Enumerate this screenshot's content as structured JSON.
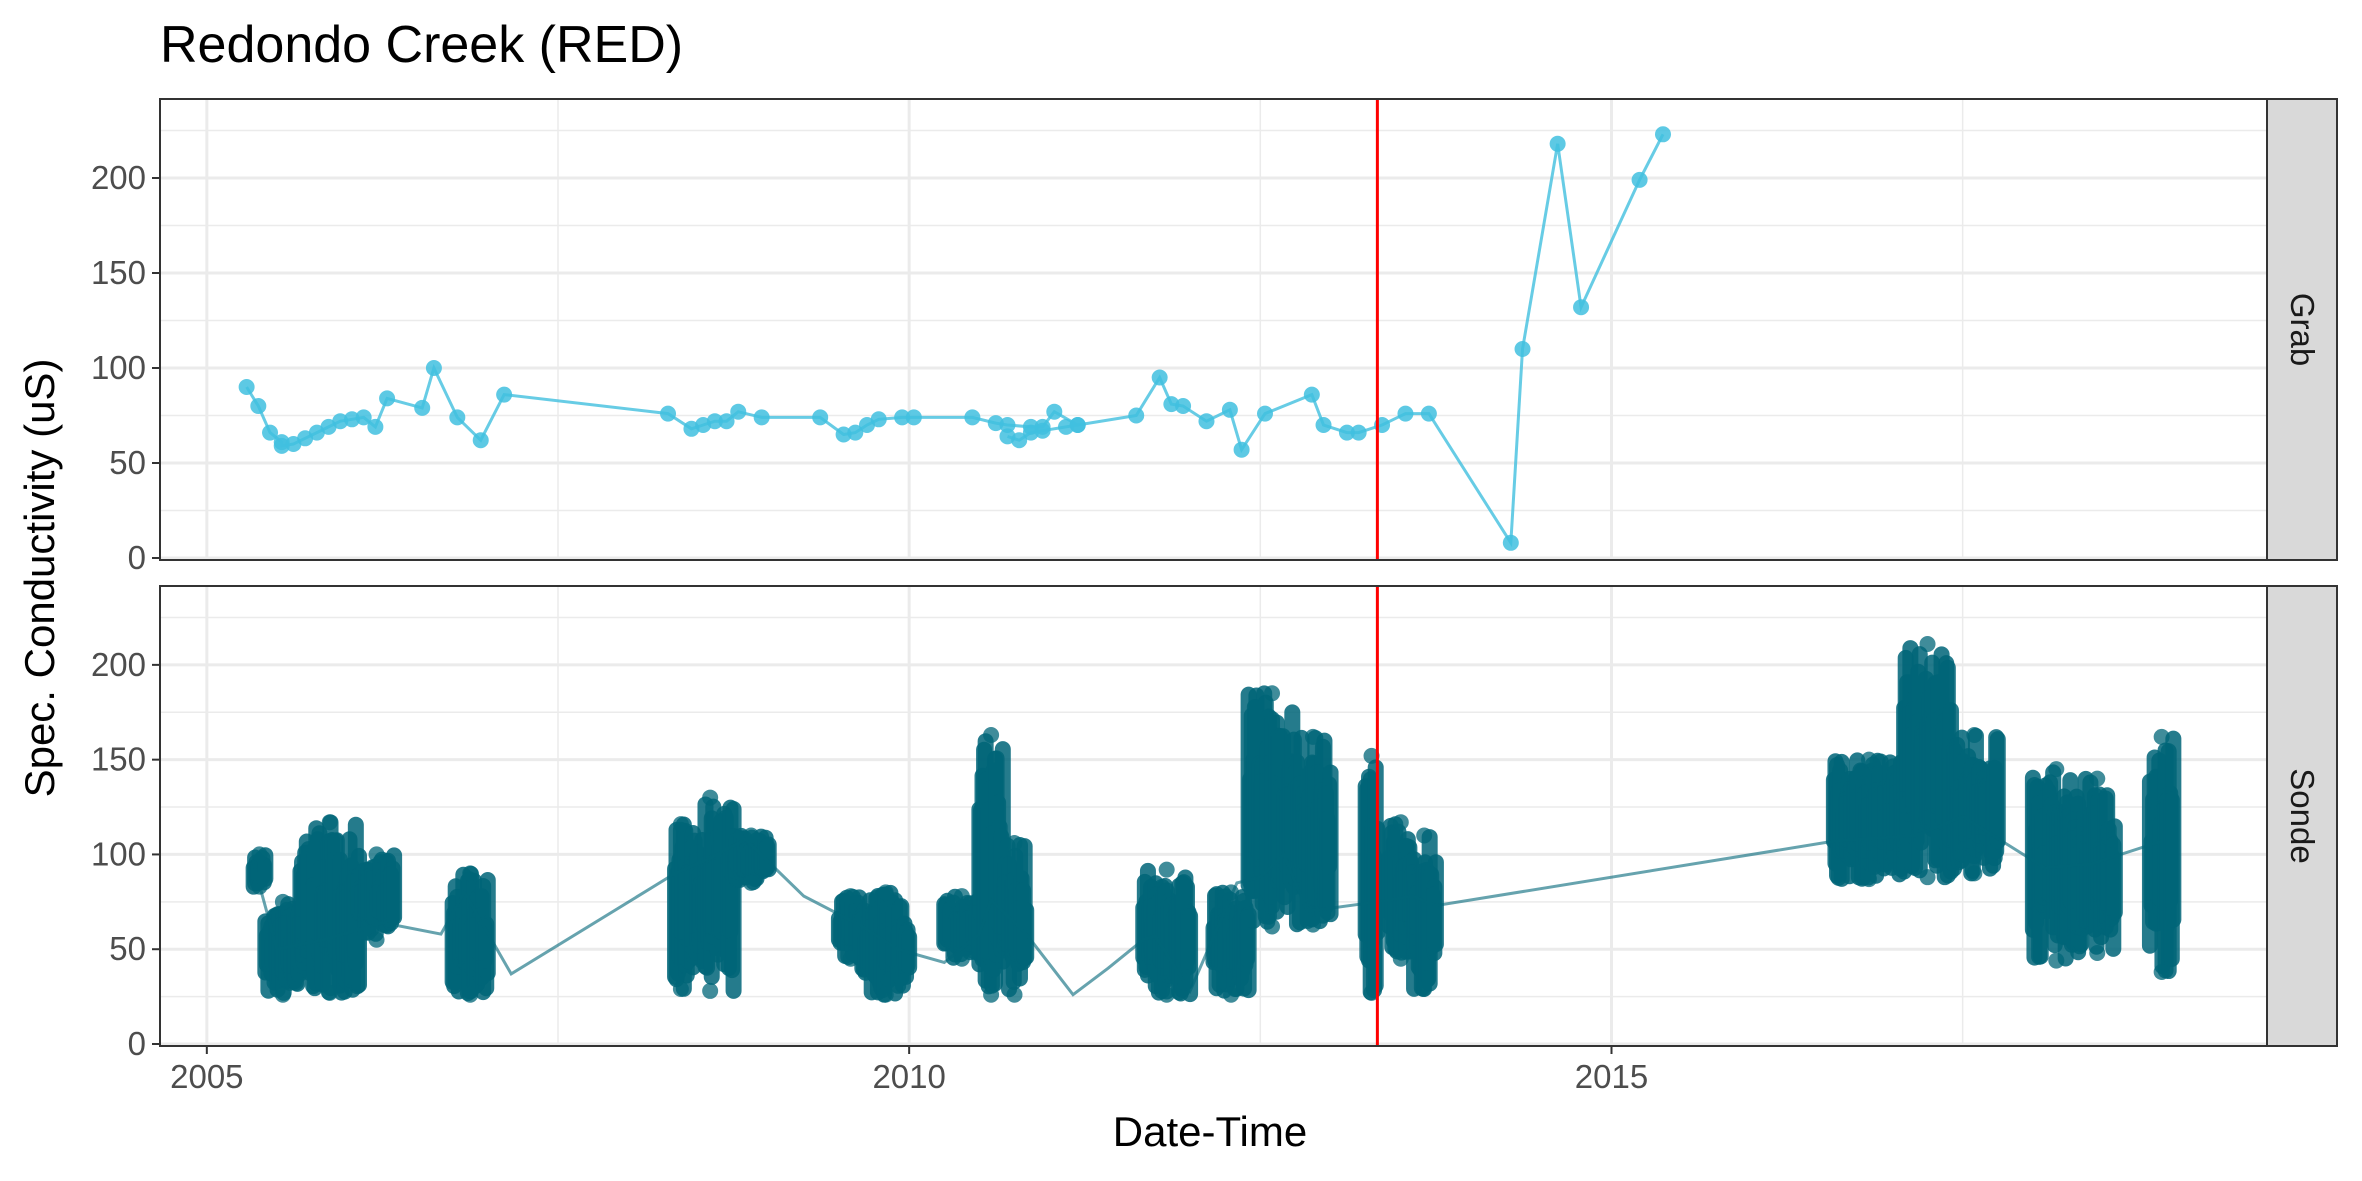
{
  "chart_data": {
    "type": "line",
    "title": "Redondo Creek (RED)",
    "xlabel": "Date-Time",
    "ylabel": "Spec. Conductivity (uS)",
    "x_ticks": [
      "2005",
      "2010",
      "2015"
    ],
    "y_ticks": [
      "0",
      "50",
      "100",
      "150",
      "200"
    ],
    "ylim": [
      0,
      230
    ],
    "xlim": [
      "2004-09",
      "2019-09"
    ],
    "grid": true,
    "reference_line": {
      "x": "2013-05",
      "color": "#ff0000"
    },
    "colors": {
      "grab": "#41bfdf",
      "sonde": "#006578",
      "grid": "#ebebeb",
      "strip_bg": "#d9d9d9"
    },
    "panels": [
      {
        "label": "Grab",
        "color": "#41bfdf",
        "points": [
          [
            "2005-05",
            90
          ],
          [
            "2005-06",
            80
          ],
          [
            "2005-07",
            66
          ],
          [
            "2005-08",
            61
          ],
          [
            "2005-08",
            59
          ],
          [
            "2005-09",
            60
          ],
          [
            "2005-10",
            63
          ],
          [
            "2005-11",
            66
          ],
          [
            "2005-12",
            69
          ],
          [
            "2006-01",
            72
          ],
          [
            "2006-02",
            73
          ],
          [
            "2006-03",
            74
          ],
          [
            "2006-04",
            69
          ],
          [
            "2006-05",
            84
          ],
          [
            "2006-08",
            79
          ],
          [
            "2006-09",
            100
          ],
          [
            "2006-11",
            74
          ],
          [
            "2007-01",
            62
          ],
          [
            "2007-03",
            86
          ],
          [
            "2008-05",
            76
          ],
          [
            "2008-07",
            68
          ],
          [
            "2008-08",
            70
          ],
          [
            "2008-09",
            72
          ],
          [
            "2008-10",
            72
          ],
          [
            "2008-11",
            77
          ],
          [
            "2009-01",
            74
          ],
          [
            "2009-06",
            74
          ],
          [
            "2009-08",
            65
          ],
          [
            "2009-09",
            66
          ],
          [
            "2009-10",
            70
          ],
          [
            "2009-11",
            73
          ],
          [
            "2010-01",
            74
          ],
          [
            "2010-02",
            74
          ],
          [
            "2010-07",
            74
          ],
          [
            "2010-09",
            71
          ],
          [
            "2010-10",
            70
          ],
          [
            "2010-12",
            69
          ],
          [
            "2011-01",
            69
          ],
          [
            "2011-02",
            77
          ],
          [
            "2011-04",
            70
          ]
        ],
        "points_b": [
          [
            "2010-10",
            64
          ],
          [
            "2010-11",
            62
          ],
          [
            "2010-12",
            66
          ],
          [
            "2011-01",
            67
          ],
          [
            "2011-03",
            69
          ],
          [
            "2011-04",
            70
          ],
          [
            "2011-09",
            75
          ],
          [
            "2011-11",
            95
          ],
          [
            "2011-12",
            81
          ],
          [
            "2012-01",
            80
          ],
          [
            "2012-03",
            72
          ],
          [
            "2012-05",
            78
          ],
          [
            "2012-06",
            57
          ],
          [
            "2012-08",
            76
          ],
          [
            "2012-12",
            86
          ],
          [
            "2013-01",
            70
          ],
          [
            "2013-03",
            66
          ],
          [
            "2013-04",
            66
          ],
          [
            "2013-06",
            70
          ],
          [
            "2013-08",
            76
          ],
          [
            "2013-10",
            76
          ],
          [
            "2014-05",
            8
          ],
          [
            "2014-06",
            110
          ],
          [
            "2014-09",
            218
          ],
          [
            "2014-11",
            132
          ],
          [
            "2015-04",
            199
          ],
          [
            "2015-06",
            223
          ]
        ]
      },
      {
        "label": "Sonde",
        "color": "#006578",
        "clusters": [
          {
            "start": "2005-05",
            "end": "2005-06",
            "min": 83,
            "max": 100
          },
          {
            "start": "2005-06",
            "end": "2005-09",
            "min": 26,
            "max": 75
          },
          {
            "start": "2005-09",
            "end": "2006-02",
            "min": 27,
            "max": 117
          },
          {
            "start": "2006-02",
            "end": "2006-05",
            "min": 55,
            "max": 100
          },
          {
            "start": "2006-10",
            "end": "2007-01",
            "min": 26,
            "max": 90
          },
          {
            "start": "2008-05",
            "end": "2008-06",
            "min": 29,
            "max": 116
          },
          {
            "start": "2008-06",
            "end": "2008-10",
            "min": 28,
            "max": 130
          },
          {
            "start": "2008-10",
            "end": "2009-01",
            "min": 85,
            "max": 110
          },
          {
            "start": "2009-07",
            "end": "2009-09",
            "min": 45,
            "max": 78
          },
          {
            "start": "2009-09",
            "end": "2010-01",
            "min": 26,
            "max": 80
          },
          {
            "start": "2010-04",
            "end": "2010-07",
            "min": 45,
            "max": 78
          },
          {
            "start": "2010-07",
            "end": "2010-09",
            "min": 26,
            "max": 163
          },
          {
            "start": "2010-09",
            "end": "2010-11",
            "min": 26,
            "max": 106
          },
          {
            "start": "2011-09",
            "end": "2012-01",
            "min": 26,
            "max": 92
          },
          {
            "start": "2012-03",
            "end": "2012-06",
            "min": 26,
            "max": 80
          },
          {
            "start": "2012-06",
            "end": "2012-10",
            "min": 62,
            "max": 185
          },
          {
            "start": "2012-10",
            "end": "2013-01",
            "min": 63,
            "max": 162
          },
          {
            "start": "2013-04",
            "end": "2013-05",
            "min": 27,
            "max": 152
          },
          {
            "start": "2013-06",
            "end": "2013-08",
            "min": 45,
            "max": 117
          },
          {
            "start": "2013-08",
            "end": "2013-10",
            "min": 29,
            "max": 110
          },
          {
            "start": "2016-08",
            "end": "2017-02",
            "min": 87,
            "max": 150
          },
          {
            "start": "2017-02",
            "end": "2017-06",
            "min": 88,
            "max": 211
          },
          {
            "start": "2017-06",
            "end": "2017-10",
            "min": 90,
            "max": 163
          },
          {
            "start": "2018-01",
            "end": "2018-05",
            "min": 44,
            "max": 145
          },
          {
            "start": "2018-05",
            "end": "2018-08",
            "min": 48,
            "max": 140
          },
          {
            "start": "2018-11",
            "end": "2019-01",
            "min": 38,
            "max": 162
          }
        ],
        "line": [
          [
            "2005-05",
            95
          ],
          [
            "2005-07",
            50
          ],
          [
            "2005-11",
            55
          ],
          [
            "2006-04",
            64
          ],
          [
            "2006-09",
            58
          ],
          [
            "2006-11",
            80
          ],
          [
            "2007-03",
            37
          ],
          [
            "2008-05",
            90
          ],
          [
            "2008-08",
            98
          ],
          [
            "2008-11",
            108
          ],
          [
            "2009-04",
            78
          ],
          [
            "2009-09",
            62
          ],
          [
            "2009-12",
            50
          ],
          [
            "2010-04",
            43
          ],
          [
            "2010-07",
            58
          ],
          [
            "2010-08",
            76
          ],
          [
            "2010-11",
            58
          ],
          [
            "2011-03",
            26
          ],
          [
            "2011-06",
            40
          ],
          [
            "2011-09",
            55
          ],
          [
            "2011-10",
            57
          ],
          [
            "2012-01",
            28
          ],
          [
            "2012-05",
            85
          ],
          [
            "2012-07",
            88
          ],
          [
            "2012-09",
            100
          ],
          [
            "2012-11",
            70
          ],
          [
            "2013-05",
            75
          ],
          [
            "2013-08",
            78
          ],
          [
            "2013-10",
            73
          ],
          [
            "2016-08",
            107
          ],
          [
            "2017-03",
            110
          ],
          [
            "2017-07",
            120
          ],
          [
            "2018-02",
            93
          ],
          [
            "2018-06",
            95
          ],
          [
            "2018-12",
            107
          ]
        ]
      }
    ]
  }
}
